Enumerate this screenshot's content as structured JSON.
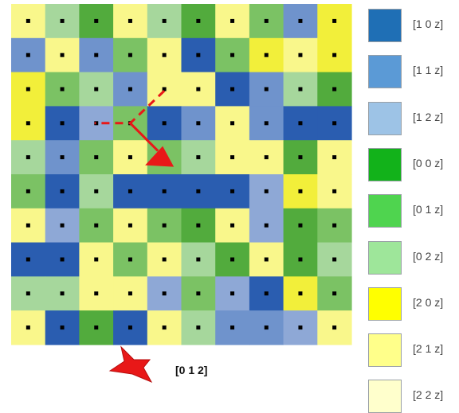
{
  "agent": {
    "label": "[0 1 2]",
    "color": "#e81818"
  },
  "palette": {
    "10": "#2a5db0",
    "11": "#6f93cc",
    "12": "#8ea8d6",
    "00": "#52ab3d",
    "01": "#7bc264",
    "02": "#a6d79c",
    "20": "#f2ef3a",
    "21": "#f9f78b",
    "22": "#fdfbc4"
  },
  "grid": [
    [
      "21",
      "02",
      "00",
      "21",
      "02",
      "00",
      "21",
      "01",
      "11",
      "20"
    ],
    [
      "11",
      "21",
      "11",
      "01",
      "21",
      "10",
      "01",
      "20",
      "21",
      "20"
    ],
    [
      "20",
      "01",
      "02",
      "11",
      "21",
      "21",
      "10",
      "11",
      "02",
      "00"
    ],
    [
      "20",
      "10",
      "12",
      "01",
      "10",
      "11",
      "21",
      "11",
      "10",
      "10"
    ],
    [
      "02",
      "11",
      "01",
      "21",
      "01",
      "02",
      "21",
      "21",
      "00",
      "21"
    ],
    [
      "01",
      "10",
      "02",
      "10",
      "10",
      "10",
      "10",
      "12",
      "20",
      "21"
    ],
    [
      "21",
      "12",
      "01",
      "21",
      "01",
      "00",
      "21",
      "12",
      "00",
      "01"
    ],
    [
      "10",
      "10",
      "21",
      "01",
      "21",
      "02",
      "00",
      "21",
      "00",
      "02"
    ],
    [
      "02",
      "02",
      "21",
      "21",
      "12",
      "01",
      "12",
      "10",
      "20",
      "01"
    ],
    [
      "21",
      "10",
      "00",
      "10",
      "21",
      "02",
      "11",
      "11",
      "12",
      "21"
    ]
  ],
  "path": {
    "dashed": [
      [
        2,
        7
      ],
      [
        4,
        2
      ]
    ],
    "arrow_end": [
      4,
      4
    ]
  },
  "legend": [
    {
      "label": "[1 0 z]",
      "color": "#1f6fb5"
    },
    {
      "label": "[1 1 z]",
      "color": "#5b9ad6"
    },
    {
      "label": "[1 2 z]",
      "color": "#9dc3e6"
    },
    {
      "label": "[0 0 z]",
      "color": "#12b21a"
    },
    {
      "label": "[0 1 z]",
      "color": "#4fd44f"
    },
    {
      "label": "[0 2 z]",
      "color": "#9ee69a"
    },
    {
      "label": "[2 0 z]",
      "color": "#ffff00"
    },
    {
      "label": "[2 1 z]",
      "color": "#ffff8a"
    },
    {
      "label": "[2 2 z]",
      "color": "#ffffcc"
    }
  ]
}
